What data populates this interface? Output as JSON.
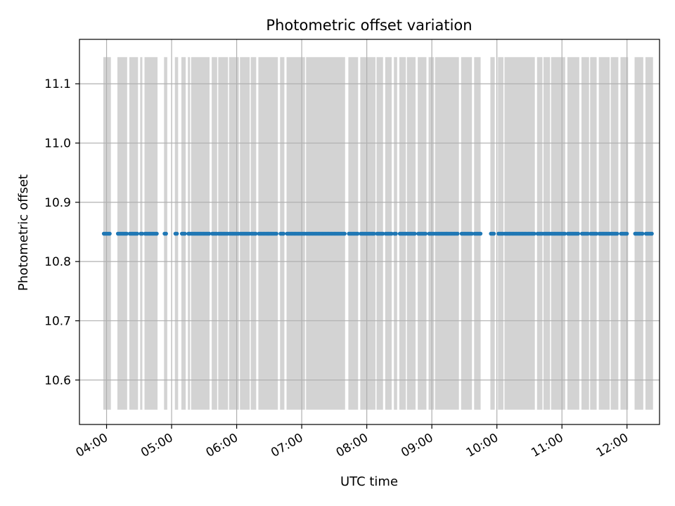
{
  "chart_data": {
    "type": "scatter",
    "title": "Photometric offset variation",
    "xlabel": "UTC time",
    "ylabel": "Photometric offset",
    "x_range": [
      "03:35",
      "12:30"
    ],
    "ylim": [
      10.525,
      11.175
    ],
    "x_ticks": [
      "04:00",
      "05:00",
      "06:00",
      "07:00",
      "08:00",
      "09:00",
      "10:00",
      "11:00",
      "12:00"
    ],
    "y_ticks": [
      "10.6",
      "10.7",
      "10.8",
      "10.9",
      "11.0",
      "11.1"
    ],
    "grid": true,
    "colors": {
      "points": "#1f77b4",
      "bands": "#d3d3d3",
      "grid": "#b0b0b0"
    },
    "band_range": [
      10.55,
      11.145
    ],
    "offset_value": 10.847,
    "observation_bands": [
      [
        "03:57",
        "04:04"
      ],
      [
        "04:10",
        "04:19"
      ],
      [
        "04:21",
        "04:29"
      ],
      [
        "04:31",
        "04:33"
      ],
      [
        "04:35",
        "04:47"
      ],
      [
        "04:53",
        "04:56"
      ],
      [
        "05:03",
        "05:06"
      ],
      [
        "05:09",
        "05:13"
      ],
      [
        "05:15",
        "05:17"
      ],
      [
        "05:18",
        "05:35"
      ],
      [
        "05:37",
        "05:42"
      ],
      [
        "05:43",
        "05:52"
      ],
      [
        "05:53",
        "06:02"
      ],
      [
        "06:03",
        "06:12"
      ],
      [
        "06:13",
        "06:18"
      ],
      [
        "06:20",
        "06:38"
      ],
      [
        "06:40",
        "06:44"
      ],
      [
        "06:46",
        "07:03"
      ],
      [
        "07:04",
        "07:40"
      ],
      [
        "07:43",
        "07:52"
      ],
      [
        "07:54",
        "08:08"
      ],
      [
        "08:09",
        "08:15"
      ],
      [
        "08:17",
        "08:23"
      ],
      [
        "08:25",
        "08:28"
      ],
      [
        "08:30",
        "08:36"
      ],
      [
        "08:37",
        "08:45"
      ],
      [
        "08:47",
        "08:55"
      ],
      [
        "08:57",
        "09:02"
      ],
      [
        "09:03",
        "09:25"
      ],
      [
        "09:27",
        "09:37"
      ],
      [
        "09:39",
        "09:45"
      ],
      [
        "09:54",
        "09:58"
      ],
      [
        "10:01",
        "10:06"
      ],
      [
        "10:07",
        "10:35"
      ],
      [
        "10:37",
        "10:42"
      ],
      [
        "10:43",
        "10:49"
      ],
      [
        "10:50",
        "11:03"
      ],
      [
        "11:05",
        "11:16"
      ],
      [
        "11:18",
        "11:25"
      ],
      [
        "11:26",
        "11:32"
      ],
      [
        "11:34",
        "11:44"
      ],
      [
        "11:45",
        "11:52"
      ],
      [
        "11:54",
        "12:01"
      ],
      [
        "12:07",
        "12:15"
      ],
      [
        "12:17",
        "12:24"
      ]
    ]
  }
}
